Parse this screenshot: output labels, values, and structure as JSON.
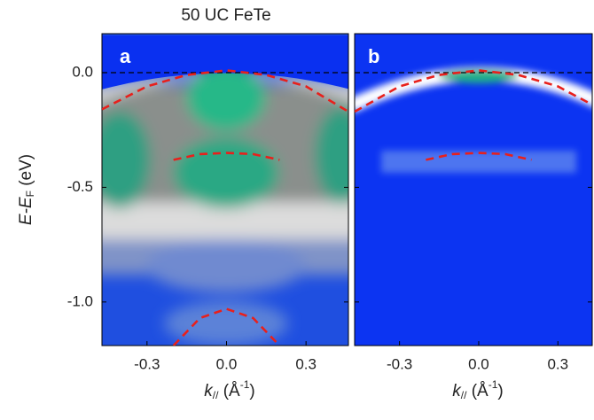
{
  "chart_data": [
    {
      "type": "line",
      "title": "50 UC FeTe",
      "panel_label": "a",
      "ylabel": {
        "main": "E-E",
        "sub": "F",
        "unit": " (eV)"
      },
      "xlabel": {
        "main": "k",
        "sub": "//",
        "unit": " (Å",
        "sup": "-1",
        "close": ")"
      },
      "xlim": [
        -0.47,
        0.46
      ],
      "ylim": [
        -1.19,
        0.17
      ],
      "xticks": [
        -0.3,
        {
          "value": 0,
          "label": "0.0"
        },
        0.3
      ],
      "yticks": [
        {
          "value": 0,
          "label": "0.0"
        },
        -0.5,
        {
          "value": -1,
          "label": "-1.0"
        }
      ],
      "series": [
        {
          "color": "#e8201c",
          "x": [
            -0.47,
            -0.3,
            -0.15,
            0,
            0.15,
            0.3,
            0.46
          ],
          "values": [
            -0.16,
            -0.06,
            -0.01,
            0.01,
            -0.01,
            -0.06,
            -0.17
          ]
        },
        {
          "color": "#e8201c",
          "x": [
            -0.2,
            -0.1,
            0,
            0.1,
            0.2
          ],
          "values": [
            -0.38,
            -0.355,
            -0.35,
            -0.355,
            -0.38
          ]
        },
        {
          "color": "#e8201c",
          "x": [
            -0.2,
            -0.1,
            0,
            0.1,
            0.2
          ],
          "values": [
            -1.19,
            -1.07,
            -1.03,
            -1.07,
            -1.19
          ]
        }
      ]
    },
    {
      "type": "line",
      "panel_label": "b",
      "xlabel": {
        "main": "k",
        "sub": "//",
        "unit": " (Å",
        "sup": "-1",
        "close": ")"
      },
      "xlim": [
        -0.47,
        0.43
      ],
      "ylim": [
        -1.19,
        0.17
      ],
      "xticks": [
        -0.3,
        {
          "value": 0,
          "label": "0.0"
        },
        0.3
      ],
      "yticks": [
        {
          "value": 0,
          "label": "0.0"
        },
        -0.5,
        {
          "value": -1,
          "label": "-1.0"
        }
      ],
      "series": [
        {
          "color": "#e8201c",
          "x": [
            -0.47,
            -0.3,
            -0.15,
            0,
            0.15,
            0.3,
            0.43
          ],
          "values": [
            -0.17,
            -0.06,
            -0.01,
            0.01,
            -0.01,
            -0.06,
            -0.14
          ]
        },
        {
          "color": "#e8201c",
          "x": [
            -0.2,
            -0.1,
            0,
            0.1,
            0.2
          ],
          "values": [
            -0.38,
            -0.355,
            -0.35,
            -0.355,
            -0.38
          ]
        }
      ]
    }
  ]
}
